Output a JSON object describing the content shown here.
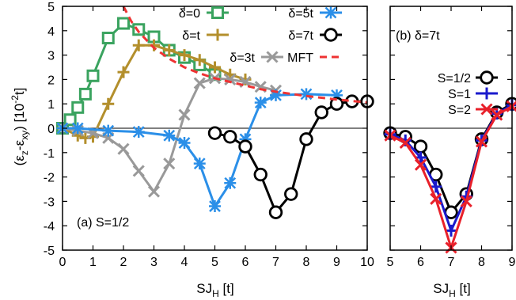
{
  "chart_data": [
    {
      "type": "line",
      "panel_label": "(a) S=1/2",
      "xlabel_main": "SJ",
      "xlabel_sub": "H",
      "xlabel_unit": " [t]",
      "ylabel_open": "(ε",
      "ylabel_z": "z",
      "ylabel_mid": "-ε",
      "ylabel_xy": "xy",
      "ylabel_close": ") [10",
      "ylabel_exp": "-2",
      "ylabel_end": "t]",
      "xlim": [
        0,
        10
      ],
      "ylim": [
        -5,
        5
      ],
      "x_ticks": [
        "0",
        "1",
        "2",
        "3",
        "4",
        "5",
        "6",
        "7",
        "8",
        "9",
        "10"
      ],
      "y_ticks": [
        "-5",
        "-4",
        "-3",
        "-2",
        "-1",
        "0",
        "1",
        "2",
        "3",
        "4",
        "5"
      ],
      "legend_position": "top",
      "series": [
        {
          "name": "δ=0",
          "color": "#3aa35f",
          "marker": "square",
          "x": [
            0,
            0.25,
            0.5,
            0.75,
            1.0,
            1.5,
            2.0,
            2.5,
            3.0,
            3.5,
            4.0,
            4.5,
            5.0
          ],
          "y": [
            0,
            0.35,
            0.85,
            1.4,
            2.15,
            3.7,
            4.3,
            4.05,
            3.75,
            3.2,
            2.9,
            2.6,
            2.2
          ]
        },
        {
          "name": "δ=t",
          "color": "#b38f2c",
          "marker": "plus",
          "x": [
            0,
            0.5,
            0.75,
            1.0,
            1.5,
            2.0,
            2.5,
            3.0,
            3.5,
            4.0,
            4.5,
            5.0,
            5.5,
            6.0
          ],
          "y": [
            0,
            -0.3,
            -0.4,
            -0.35,
            1.0,
            2.3,
            3.4,
            3.4,
            3.2,
            3.0,
            2.8,
            2.5,
            2.2,
            2.0
          ]
        },
        {
          "name": "δ=3t",
          "color": "#999999",
          "marker": "x",
          "x": [
            0,
            0.5,
            1.0,
            1.5,
            2.0,
            2.5,
            3.0,
            3.5,
            4.0,
            4.5,
            5.0,
            5.5,
            6.0,
            6.5,
            7.0
          ],
          "y": [
            0,
            -0.1,
            -0.2,
            -0.4,
            -0.85,
            -1.75,
            -2.6,
            -1.45,
            0.55,
            1.85,
            2.05,
            2.0,
            1.9,
            1.7,
            1.55
          ]
        },
        {
          "name": "δ=5t",
          "color": "#2b8fe8",
          "marker": "star",
          "x": [
            0,
            0.5,
            1.5,
            2.5,
            3.5,
            4.0,
            4.5,
            5.0,
            5.5,
            6.0,
            6.5,
            7.0,
            8.0,
            9.0
          ],
          "y": [
            0,
            0,
            -0.1,
            -0.15,
            -0.3,
            -0.6,
            -1.45,
            -3.2,
            -2.25,
            -0.45,
            1.05,
            1.35,
            1.4,
            1.35
          ]
        },
        {
          "name": "δ=7t",
          "color": "#000000",
          "marker": "circle",
          "x": [
            5.0,
            5.5,
            6.0,
            6.5,
            7.0,
            7.5,
            8.0,
            8.5,
            9.0,
            9.5,
            10.0
          ],
          "y": [
            -0.2,
            -0.35,
            -0.75,
            -1.9,
            -3.45,
            -2.7,
            -0.45,
            0.65,
            1.0,
            1.1,
            1.1
          ]
        },
        {
          "name": "MFT",
          "color": "#ee3333",
          "style": "dashed",
          "x": [
            2.0,
            2.25,
            2.5,
            3.0,
            3.5,
            4.0,
            4.5,
            5.0,
            5.5,
            6.0,
            6.5,
            7.0,
            8.0,
            9.0,
            10.0
          ],
          "y": [
            5.0,
            4.4,
            3.95,
            3.3,
            2.85,
            2.5,
            2.25,
            2.05,
            1.9,
            1.75,
            1.6,
            1.5,
            1.32,
            1.18,
            1.06
          ]
        }
      ]
    },
    {
      "type": "line",
      "panel_label": "(b) δ=7t",
      "xlabel_main": "SJ",
      "xlabel_sub": "H",
      "xlabel_unit": " [t]",
      "xlim": [
        5,
        9
      ],
      "ylim": [
        -5,
        5
      ],
      "x_ticks": [
        "5",
        "6",
        "7",
        "8",
        "9"
      ],
      "legend_position": "left",
      "series": [
        {
          "name": "S=1/2",
          "color": "#000000",
          "marker": "circle",
          "x": [
            5.0,
            5.5,
            6.0,
            6.5,
            7.0,
            7.5,
            8.0,
            8.5,
            9.0
          ],
          "y": [
            -0.2,
            -0.35,
            -0.75,
            -1.9,
            -3.45,
            -2.7,
            -0.45,
            0.65,
            1.0
          ]
        },
        {
          "name": "S=1",
          "color": "#1a1acc",
          "marker": "plus",
          "x": [
            5.0,
            5.5,
            6.0,
            6.5,
            7.0,
            7.5,
            8.0,
            8.5,
            9.0
          ],
          "y": [
            -0.25,
            -0.5,
            -1.2,
            -2.4,
            -4.2,
            -2.8,
            -0.5,
            0.6,
            0.95
          ]
        },
        {
          "name": "S=2",
          "color": "#e8202a",
          "marker": "x",
          "x": [
            5.0,
            5.5,
            6.0,
            6.5,
            7.0,
            7.5,
            8.0,
            8.5,
            9.0
          ],
          "y": [
            -0.3,
            -0.6,
            -1.5,
            -2.9,
            -4.9,
            -3.0,
            -0.55,
            0.55,
            0.9
          ]
        }
      ]
    }
  ]
}
